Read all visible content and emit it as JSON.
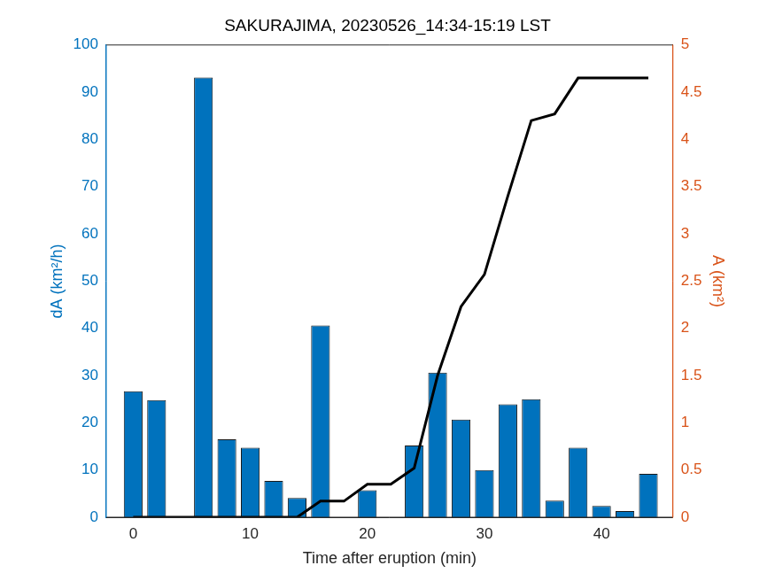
{
  "chart_data": {
    "type": "bar",
    "title": "SAKURAJIMA, 20230526_14:34-15:19 LST",
    "x_label": "Time after eruption (min)",
    "y_label": "dA (km²/h)",
    "y2_label": "A (km²)",
    "x": [
      0,
      2,
      4,
      6,
      8,
      10,
      12,
      14,
      16,
      18,
      20,
      22,
      24,
      26,
      28,
      30,
      32,
      34,
      36,
      38,
      40,
      42,
      44
    ],
    "series": [
      {
        "type": "bar",
        "color": "#0072bd",
        "values": [
          26.7,
          24.8,
          0,
          93.1,
          16.5,
          14.7,
          7.7,
          4.1,
          40.6,
          0,
          5.7,
          0,
          15.2,
          30.6,
          20.7,
          10.0,
          23.9,
          25.0,
          3.5,
          14.7,
          2.4,
          1.3,
          9.2
        ]
      },
      {
        "type": "line",
        "color": "#000000",
        "axis": "y2",
        "values": [
          0,
          0,
          0,
          0,
          0,
          0,
          0,
          0,
          0.17,
          0.17,
          0.35,
          0.35,
          0.52,
          1.5,
          2.23,
          2.57,
          3.4,
          4.2,
          4.27,
          4.65,
          4.65,
          4.65,
          4.65
        ]
      }
    ],
    "xlim": [
      -2.3,
      46.1
    ],
    "xticks": [
      0,
      10,
      20,
      30,
      40
    ],
    "ylim": [
      0,
      100
    ],
    "yticks": [
      0,
      10,
      20,
      30,
      40,
      50,
      60,
      70,
      80,
      90,
      100
    ],
    "y2lim": [
      0,
      5
    ],
    "y2ticks": [
      0,
      0.5,
      1,
      1.5,
      2,
      2.5,
      3,
      3.5,
      4,
      4.5,
      5
    ],
    "grid": false
  }
}
